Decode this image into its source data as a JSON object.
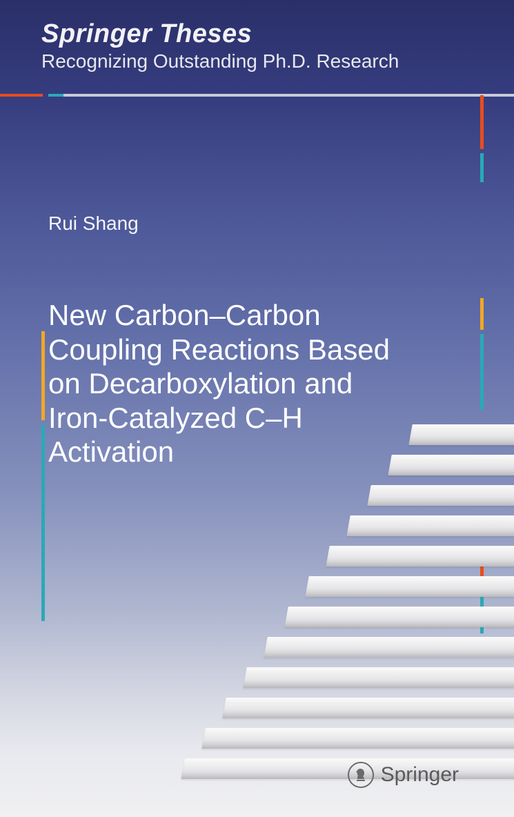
{
  "series": {
    "title": "Springer Theses",
    "subtitle": "Recognizing Outstanding Ph.D. Research"
  },
  "author": "Rui Shang",
  "title": "New Carbon–Carbon Coupling Reactions Based on Decarboxylation and Iron-Catalyzed C–H Activation",
  "publisher": {
    "name": "Springer",
    "icon": "chess-horse-icon"
  },
  "colors": {
    "gradient_top": "#2a2f68",
    "gradient_bottom": "#f0f0f2",
    "accent_orange": "#e84e1c",
    "accent_cyan": "#2aa9b8",
    "accent_yellow": "#f0a826",
    "text_light": "#ffffff",
    "publisher_grey": "#5a5a5c"
  },
  "stairs": {
    "count": 12,
    "base_width": 560,
    "step_height": 30,
    "rise": 44,
    "shrink": 34,
    "color_top": "#fafafa",
    "color_bottom": "#cdcdd1"
  }
}
